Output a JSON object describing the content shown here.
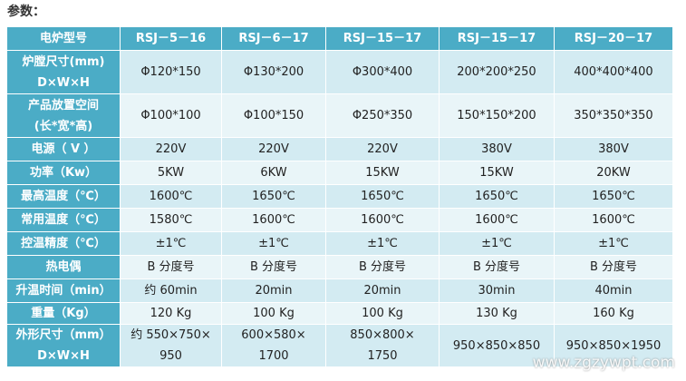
{
  "title": "参数：",
  "table": {
    "rows": [
      [
        [
          "电炉型号"
        ],
        [
          "RSJ－5－16"
        ],
        [
          "RSJ－6－17"
        ],
        [
          "RSJ－15－17"
        ],
        [
          "RSJ－15－17"
        ],
        [
          "RSJ－20－17"
        ]
      ],
      [
        [
          "炉膛尺寸(mm)",
          "D×W×H"
        ],
        [
          "Φ120*150"
        ],
        [
          "Φ130*200"
        ],
        [
          "Φ300*400"
        ],
        [
          "200*200*250"
        ],
        [
          "400*400*400"
        ]
      ],
      [
        [
          "产品放置空间",
          "(长*宽*高)"
        ],
        [
          "Φ100*100"
        ],
        [
          "Φ100*150"
        ],
        [
          "Φ250*350"
        ],
        [
          "150*150*200"
        ],
        [
          "350*350*350"
        ]
      ],
      [
        [
          "电源（ V ）"
        ],
        [
          "220V"
        ],
        [
          "220V"
        ],
        [
          "220V"
        ],
        [
          "380V"
        ],
        [
          "380V"
        ]
      ],
      [
        [
          "功率（Kw）"
        ],
        [
          "5KW"
        ],
        [
          "6KW"
        ],
        [
          "15KW"
        ],
        [
          "15KW"
        ],
        [
          "20KW"
        ]
      ],
      [
        [
          "最高温度（℃）"
        ],
        [
          "1600℃"
        ],
        [
          "1650℃"
        ],
        [
          "1650℃"
        ],
        [
          "1650℃"
        ],
        [
          "1650℃"
        ]
      ],
      [
        [
          "常用温度（℃）"
        ],
        [
          "1580℃"
        ],
        [
          "1600℃"
        ],
        [
          "1600℃"
        ],
        [
          "1600℃"
        ],
        [
          "1600℃"
        ]
      ],
      [
        [
          "控温精度（℃）"
        ],
        [
          "±1℃"
        ],
        [
          "±1℃"
        ],
        [
          "±1℃"
        ],
        [
          "±1℃"
        ],
        [
          "±1℃"
        ]
      ],
      [
        [
          "热电偶"
        ],
        [
          "B 分度号"
        ],
        [
          "B 分度号"
        ],
        [
          "B 分度号"
        ],
        [
          "B 分度号"
        ],
        [
          "B 分度号"
        ]
      ],
      [
        [
          "升温时间（min）"
        ],
        [
          "约 60min"
        ],
        [
          "20min"
        ],
        [
          "20min"
        ],
        [
          "30min"
        ],
        [
          "40min"
        ]
      ],
      [
        [
          "重量（Kg）"
        ],
        [
          "120 Kg"
        ],
        [
          "100 Kg"
        ],
        [
          "100 Kg"
        ],
        [
          "130 Kg"
        ],
        [
          "160 Kg"
        ]
      ],
      [
        [
          "外形尺寸（mm）",
          "D×W×H"
        ],
        [
          "约 550×750×",
          "950"
        ],
        [
          "600×580×",
          "1700"
        ],
        [
          "850×800×",
          "1750"
        ],
        [
          "950×850×850"
        ],
        [
          "950×850×1950"
        ]
      ]
    ]
  },
  "watermark": "www.zgzywpt.com"
}
